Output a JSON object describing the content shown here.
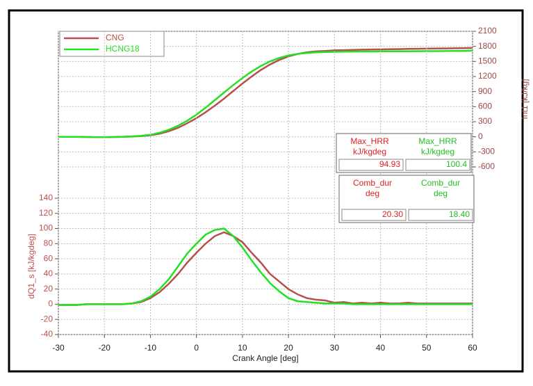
{
  "chart_data": [
    {
      "type": "line",
      "ylabel": "Int1 [kJ/kg]",
      "y_axis_side": "right",
      "legend": "upper left",
      "xlim": [
        -30,
        60
      ],
      "ylim": [
        -600,
        2100
      ],
      "yticks": [
        -600,
        -300,
        0,
        300,
        600,
        900,
        1200,
        1500,
        1800,
        2100
      ],
      "x": [
        -30,
        -28,
        -26,
        -24,
        -22,
        -20,
        -18,
        -16,
        -14,
        -12,
        -10,
        -8,
        -6,
        -4,
        -2,
        0,
        2,
        4,
        6,
        8,
        10,
        12,
        14,
        16,
        18,
        20,
        22,
        24,
        26,
        28,
        30,
        32,
        34,
        36,
        38,
        40,
        42,
        44,
        46,
        48,
        50,
        52,
        54,
        56,
        58,
        60
      ],
      "series": [
        {
          "name": "CNG",
          "color": "#b5504a",
          "values": [
            0,
            0,
            0,
            -5,
            -8,
            -8,
            -5,
            0,
            5,
            15,
            30,
            60,
            110,
            180,
            270,
            370,
            490,
            620,
            760,
            910,
            1060,
            1200,
            1330,
            1440,
            1530,
            1600,
            1650,
            1680,
            1700,
            1710,
            1720,
            1725,
            1730,
            1735,
            1738,
            1740,
            1743,
            1746,
            1749,
            1752,
            1755,
            1758,
            1760,
            1762,
            1765,
            1768
          ]
        },
        {
          "name": "HCNG18",
          "color": "#22e022",
          "values": [
            0,
            0,
            0,
            -5,
            -8,
            -8,
            -5,
            0,
            8,
            20,
            40,
            80,
            140,
            220,
            320,
            440,
            580,
            730,
            880,
            1030,
            1170,
            1300,
            1410,
            1500,
            1570,
            1620,
            1650,
            1670,
            1680,
            1688,
            1692,
            1695,
            1697,
            1698,
            1699,
            1700,
            1701,
            1702,
            1703,
            1704,
            1705,
            1706,
            1707,
            1708,
            1710,
            1713
          ]
        }
      ]
    },
    {
      "type": "line",
      "ylabel": "dQ1_s [kJ/kgdeg]",
      "xlabel": "Crank Angle [deg]",
      "y_axis_side": "left",
      "xlim": [
        -30,
        60
      ],
      "xticks": [
        -30,
        -20,
        -10,
        0,
        10,
        20,
        30,
        40,
        50,
        60
      ],
      "ylim": [
        -40,
        140
      ],
      "yticks": [
        -40,
        -20,
        0,
        20,
        40,
        60,
        80,
        100,
        120,
        140
      ],
      "x": [
        -30,
        -28,
        -26,
        -24,
        -22,
        -20,
        -18,
        -16,
        -14,
        -12,
        -10,
        -8,
        -6,
        -4,
        -2,
        0,
        2,
        4,
        6,
        8,
        10,
        12,
        14,
        16,
        18,
        20,
        22,
        24,
        26,
        28,
        30,
        32,
        34,
        36,
        38,
        40,
        42,
        44,
        46,
        48,
        50,
        52,
        54,
        56,
        58,
        60
      ],
      "series": [
        {
          "name": "CNG",
          "color": "#b5504a",
          "values": [
            -1,
            -1,
            -1,
            0,
            0,
            0,
            0,
            0,
            1,
            3,
            8,
            16,
            27,
            40,
            55,
            68,
            80,
            90,
            95,
            90,
            82,
            68,
            55,
            40,
            30,
            20,
            13,
            8,
            6,
            5,
            2,
            3,
            1,
            2,
            1,
            2,
            1,
            1,
            2,
            1,
            1,
            1,
            1,
            1,
            1,
            1
          ]
        },
        {
          "name": "HCNG18",
          "color": "#22e022",
          "values": [
            -1,
            -1,
            -1,
            0,
            0,
            0,
            0,
            0,
            1,
            4,
            10,
            20,
            33,
            50,
            67,
            80,
            92,
            98,
            100,
            90,
            75,
            58,
            42,
            28,
            17,
            8,
            4,
            3,
            2,
            1,
            1,
            1,
            0,
            0,
            0,
            0,
            0,
            0,
            0,
            0,
            0,
            0,
            0,
            0,
            0,
            0
          ]
        }
      ]
    }
  ],
  "stat_boxes": [
    {
      "columns": [
        {
          "name": "Max_HRR",
          "unit": "kJ/kgdeg",
          "value": "94.93",
          "color": "#e02020"
        },
        {
          "name": "Max_HRR",
          "unit": "kJ/kgdeg",
          "value": "100.4",
          "color": "#22c022"
        }
      ]
    },
    {
      "columns": [
        {
          "name": "Comb_dur",
          "unit": "deg",
          "value": "20.30",
          "color": "#e02020"
        },
        {
          "name": "Comb_dur",
          "unit": "deg",
          "value": "18.40",
          "color": "#22c022"
        }
      ]
    }
  ]
}
